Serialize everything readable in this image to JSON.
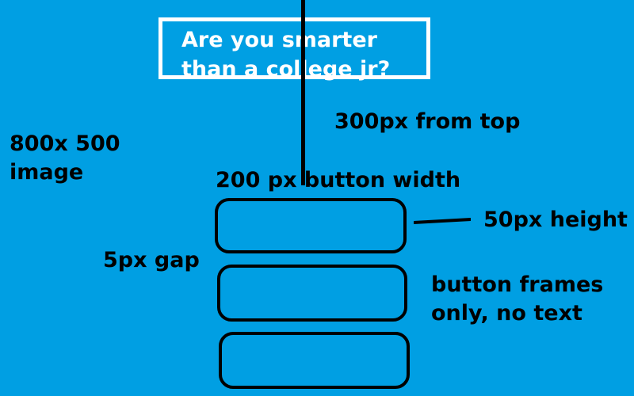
{
  "page": {
    "background_color": "#009fe3",
    "foreground_color": "#000000",
    "title_color": "#ffffff"
  },
  "title": {
    "text": "Are you smarter\nthan a college jr?"
  },
  "annotations": {
    "image_size": "800x 500\nimage",
    "distance_from_top": "300px  from top",
    "button_width": "200 px button width",
    "button_height": "50px height",
    "button_gap": "5px gap",
    "button_frames_note": "button frames\nonly, no text"
  },
  "buttons": [
    {
      "label": ""
    },
    {
      "label": ""
    },
    {
      "label": ""
    }
  ]
}
